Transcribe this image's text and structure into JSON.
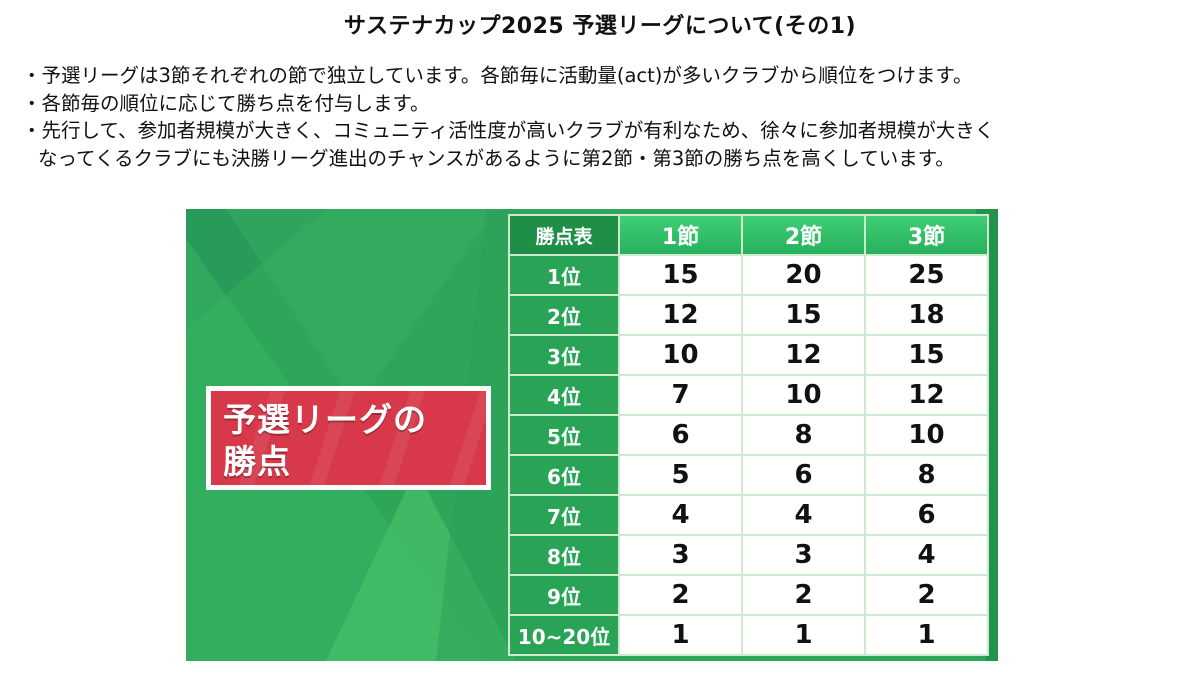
{
  "title": "サステナカップ2025 予選リーグについて(その1)",
  "bullets": [
    "・予選リーグは3節それぞれの節で独立しています。各節毎に活動量(act)が多いクラブから順位をつけます。",
    "・各節毎の順位に応じて勝ち点を付与します。",
    "・先行して、参加者規模が大きく、コミュニティ活性度が高いクラブが有利なため、徐々に参加者規模が大きく\nなってくるクラブにも決勝リーグ進出のチャンスがあるように第2節・第3節の勝ち点を高くしています。"
  ],
  "banner": {
    "text": "予選リーグの\n勝点"
  },
  "points_table": {
    "corner": "勝点表",
    "columns": [
      "1節",
      "2節",
      "3節"
    ],
    "rows": [
      {
        "rank": "1位",
        "values": [
          "15",
          "20",
          "25"
        ]
      },
      {
        "rank": "2位",
        "values": [
          "12",
          "15",
          "18"
        ]
      },
      {
        "rank": "3位",
        "values": [
          "10",
          "12",
          "15"
        ]
      },
      {
        "rank": "4位",
        "values": [
          "7",
          "10",
          "12"
        ]
      },
      {
        "rank": "5位",
        "values": [
          "6",
          "8",
          "10"
        ]
      },
      {
        "rank": "6位",
        "values": [
          "5",
          "6",
          "8"
        ]
      },
      {
        "rank": "7位",
        "values": [
          "4",
          "4",
          "6"
        ]
      },
      {
        "rank": "8位",
        "values": [
          "3",
          "3",
          "4"
        ]
      },
      {
        "rank": "9位",
        "values": [
          "2",
          "2",
          "2"
        ]
      },
      {
        "rank": "10~20位",
        "values": [
          "1",
          "1",
          "1"
        ]
      }
    ]
  },
  "colors": {
    "panel_green": "#2ea65a",
    "header_green": "#27b05d",
    "rank_green": "#29a356",
    "banner_red": "#d7394a"
  }
}
